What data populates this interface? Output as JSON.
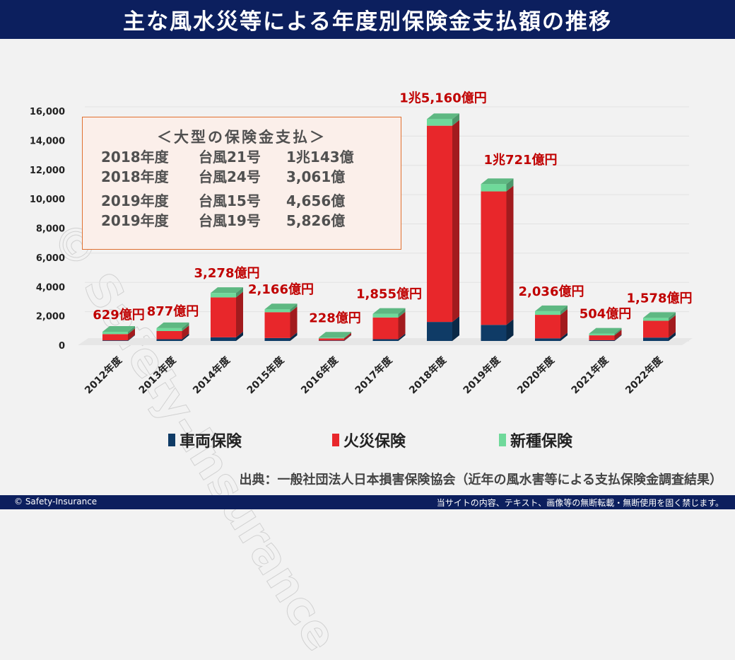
{
  "header": {
    "title": "主な風水災等による年度別保険金支払額の推移"
  },
  "infobox": {
    "title": "＜大型の保険金支払＞",
    "rows": [
      {
        "year": "2018年度",
        "typhoon": "台風21号",
        "amount": "1兆143億"
      },
      {
        "year": "2018年度",
        "typhoon": "台風24号",
        "amount": "3,061億"
      },
      {
        "year": "2019年度",
        "typhoon": "台風15号",
        "amount": "4,656億"
      },
      {
        "year": "2019年度",
        "typhoon": "台風19号",
        "amount": "5,826億"
      }
    ]
  },
  "chart_data": {
    "type": "bar",
    "stacked": true,
    "title": "主な風水災等による年度別保険金支払額の推移",
    "xlabel": "",
    "ylabel": "",
    "ylim": [
      0,
      16000
    ],
    "yticks": [
      "0",
      "2,000",
      "4,000",
      "6,000",
      "8,000",
      "10,000",
      "12,000",
      "14,000",
      "16,000"
    ],
    "grid": true,
    "legend_position": "bottom",
    "categories": [
      "2012年度",
      "2013年度",
      "2014年度",
      "2015年度",
      "2016年度",
      "2017年度",
      "2018年度",
      "2019年度",
      "2020年度",
      "2021年度",
      "2022年度"
    ],
    "series": [
      {
        "name": "車両保険",
        "color": "#0f3b66",
        "values": [
          40,
          120,
          250,
          200,
          30,
          120,
          1300,
          1100,
          180,
          50,
          230
        ]
      },
      {
        "name": "火災保険",
        "color": "#e8272b",
        "values": [
          429,
          557,
          2728,
          1766,
          148,
          1485,
          13410,
          9121,
          1606,
          334,
          1148
        ]
      },
      {
        "name": "新種保険",
        "color": "#6fd99a",
        "values": [
          160,
          200,
          300,
          200,
          50,
          250,
          450,
          500,
          250,
          120,
          200
        ]
      }
    ],
    "totals": [
      629,
      877,
      3278,
      2166,
      228,
      1855,
      15160,
      10721,
      2036,
      504,
      1578
    ],
    "data_labels": [
      "629億円",
      "877億円",
      "3,278億円",
      "2,166億円",
      "228億円",
      "1,855億円",
      "1兆5,160億円",
      "1兆721億円",
      "2,036億円",
      "504億円",
      "1,578億円"
    ],
    "label_color": "#c00000"
  },
  "source": "出典：一般社団法人日本損害保険協会（近年の風水害等による支払保険金調査結果）",
  "footer": {
    "copyright": "© Safety-Insurance",
    "notice": "当サイトの内容、テキスト、画像等の無断転載・無断使用を固く禁じます。"
  },
  "watermark": "© Safety-Insurance"
}
